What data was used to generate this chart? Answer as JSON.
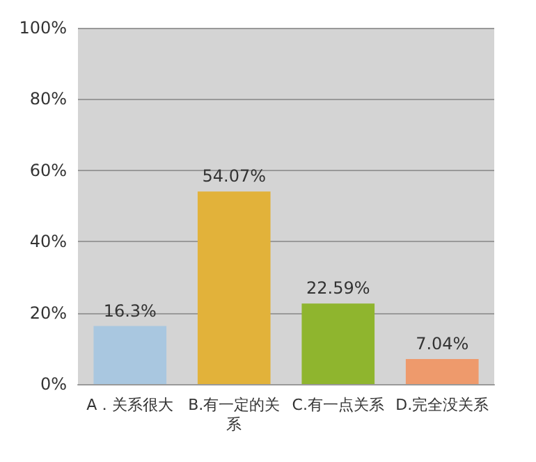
{
  "chart_data": {
    "type": "bar",
    "categories": [
      "A．关系很大",
      "B.有一定的关系",
      "C.有一点关系",
      "D.完全没关系"
    ],
    "values": [
      16.3,
      54.07,
      22.59,
      7.04
    ],
    "colors": [
      "#a9c7e0",
      "#e2b23a",
      "#8fb52e",
      "#ee9a6c"
    ],
    "value_labels": [
      "16.3%",
      "54.07%",
      "22.59%",
      "7.04%"
    ],
    "ylim": [
      0,
      100
    ],
    "yticks": [
      {
        "value": 0,
        "label": "0%"
      },
      {
        "value": 20,
        "label": "20%"
      },
      {
        "value": 40,
        "label": "40%"
      },
      {
        "value": 60,
        "label": "60%"
      },
      {
        "value": 80,
        "label": "80%"
      },
      {
        "value": 100,
        "label": "100%"
      }
    ],
    "grid": "y"
  }
}
